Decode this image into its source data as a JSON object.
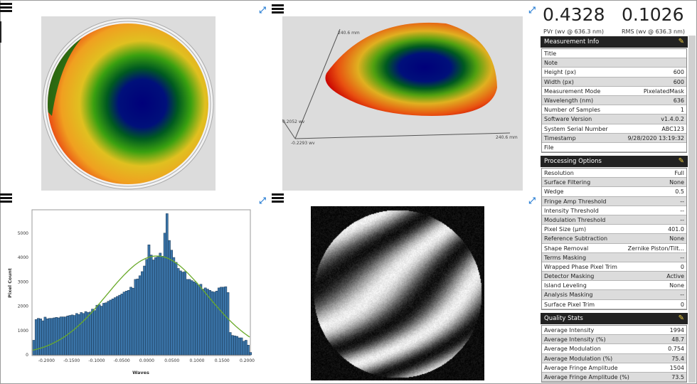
{
  "metrics": {
    "pvr": {
      "value": "0.4328",
      "label": "PVr (wv @ 636.3 nm)"
    },
    "rms": {
      "value": "0.1026",
      "label": "RMS (wv @ 636.3 nm)"
    }
  },
  "sections": [
    {
      "title": "Measurement Info",
      "rows": [
        [
          "Title",
          ""
        ],
        [
          "Note",
          ""
        ],
        [
          "Height (px)",
          "600"
        ],
        [
          "Width (px)",
          "600"
        ],
        [
          "Measurement Mode",
          "PixelatedMask"
        ],
        [
          "Wavelength (nm)",
          "636"
        ],
        [
          "Number of Samples",
          "1"
        ],
        [
          "Software Version",
          "v1.4.0.2"
        ],
        [
          "System Serial Number",
          "ABC123"
        ],
        [
          "Timestamp",
          "9/28/2020 13:19:32"
        ],
        [
          "File",
          ""
        ]
      ]
    },
    {
      "title": "Processing Options",
      "rows": [
        [
          "Resolution",
          "Full"
        ],
        [
          "Surface Filtering",
          "None"
        ],
        [
          "Wedge",
          "0.5"
        ],
        [
          "Fringe Amp Threshold",
          "--"
        ],
        [
          "Intensity Threshold",
          "--"
        ],
        [
          "Modulation Threshold",
          "--"
        ],
        [
          "Pixel Size (µm)",
          "401.0"
        ],
        [
          "Reference Subtraction",
          "None"
        ],
        [
          "Shape Removal",
          "Zernike Piston/Tilt..."
        ],
        [
          "Terms Masking",
          "--"
        ],
        [
          "Wrapped Phase Pixel Trim",
          "0"
        ],
        [
          "Detector Masking",
          "Active"
        ],
        [
          "Island Leveling",
          "None"
        ],
        [
          "Analysis Masking",
          "--"
        ],
        [
          "Surface Pixel Trim",
          "0"
        ]
      ]
    },
    {
      "title": "Quality Stats",
      "rows": [
        [
          "Average Intensity",
          "1994"
        ],
        [
          "Average Intensity (%)",
          "48.7"
        ],
        [
          "Average Modulation",
          "0.754"
        ],
        [
          "Average Modulation (%)",
          "75.4"
        ],
        [
          "Average Fringe Amplitude",
          "1504"
        ],
        [
          "Average Fringe Amplitude (%)",
          "73.5"
        ]
      ]
    }
  ],
  "plot3d": {
    "axis_y": "240.6 mm",
    "axis_x": "240.6 mm",
    "z_max": "0.2052 wv",
    "z_min": "-0.2293 wv"
  },
  "colors": {
    "accent": "#2a7fd4",
    "bar": "#3a74a8",
    "fit": "#6aaa2a",
    "header": "#222222"
  },
  "chart_data": {
    "type": "bar",
    "xlabel": "Waves",
    "ylabel": "Pixel Count",
    "xlim": [
      -0.2275,
      0.205
    ],
    "ylim": [
      0,
      5900
    ],
    "xticks": [
      "-0.2000",
      "-0.1500",
      "-0.1000",
      "-0.0500",
      "0.0000",
      "0.0500",
      "0.1000",
      "0.1500",
      "0.2000"
    ],
    "xtick_values": [
      -0.2,
      -0.15,
      -0.1,
      -0.05,
      0,
      0.05,
      0.1,
      0.15,
      0.2
    ],
    "yticks": [
      "0",
      "1000",
      "2000",
      "3000",
      "4000",
      "5000"
    ],
    "ytick_values": [
      0,
      1000,
      2000,
      3000,
      4000,
      5000
    ],
    "bin_start": -0.2275,
    "bin_width": 0.0045,
    "counts": [
      600,
      1450,
      1500,
      1480,
      1400,
      1550,
      1480,
      1500,
      1500,
      1520,
      1540,
      1520,
      1560,
      1560,
      1560,
      1600,
      1620,
      1640,
      1620,
      1700,
      1660,
      1740,
      1700,
      1780,
      1740,
      1760,
      1880,
      1820,
      2040,
      2060,
      2000,
      2120,
      2140,
      2200,
      2250,
      2300,
      2350,
      2400,
      2450,
      2500,
      2580,
      2620,
      2650,
      2780,
      2740,
      3100,
      3120,
      3250,
      3420,
      3650,
      3920,
      4520,
      4100,
      3900,
      4000,
      4060,
      4180,
      4050,
      5000,
      5800,
      4700,
      4300,
      4000,
      3800,
      3550,
      3450,
      3400,
      3420,
      3100,
      3100,
      3050,
      3000,
      2950,
      2850,
      2900,
      2700,
      2750,
      2700,
      2650,
      2600,
      2580,
      2620,
      2750,
      2780,
      2780,
      2800,
      2560,
      920,
      800,
      780,
      760,
      700,
      700,
      560,
      600,
      400,
      100
    ],
    "fit": {
      "type": "gaussian",
      "peak": 4060,
      "mean": 0.02,
      "sigma": 0.1
    }
  }
}
